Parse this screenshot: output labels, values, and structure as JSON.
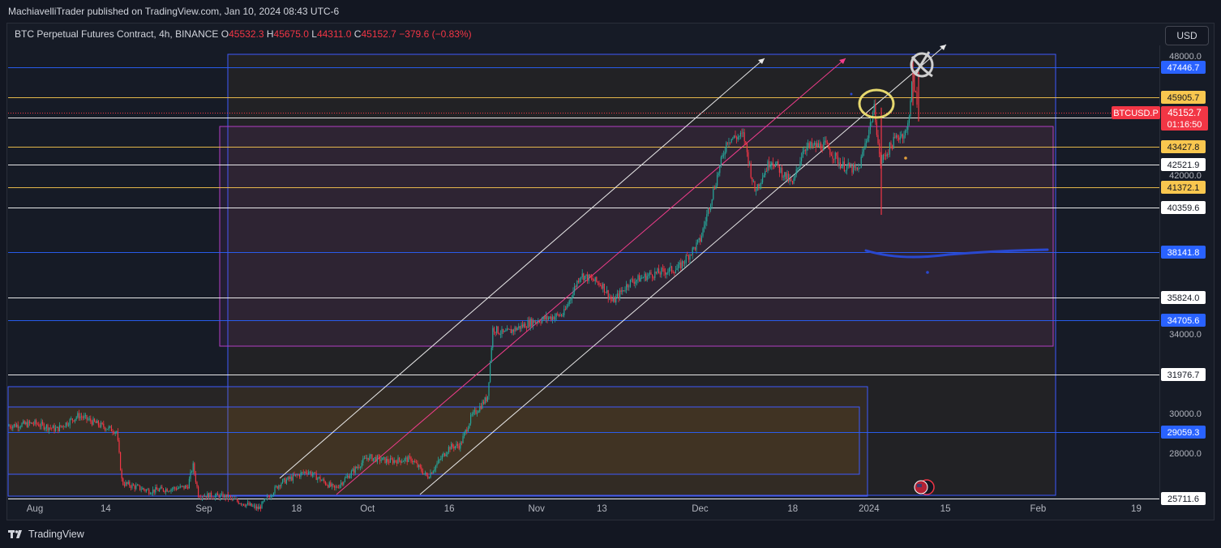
{
  "header": {
    "published_by": "MachiavelliTrader published on TradingView.com, Jan 10, 2024 08:43 UTC-6"
  },
  "legend": {
    "instrument": "BTC Perpetual Futures Contract, 4h, BINANCE",
    "open_label": "O",
    "open": "45532.3",
    "high_label": "H",
    "high": "45675.0",
    "low_label": "L",
    "low": "44311.0",
    "close_label": "C",
    "close": "45152.7",
    "change": "−379.6 (−0.83%)"
  },
  "toolbar": {
    "currency": "USD"
  },
  "footer": {
    "brand": "TradingView"
  },
  "colors": {
    "background": "#131722",
    "up": "#26a69a",
    "down": "#f23645",
    "blue_line": "#2962ff",
    "yellow_line": "#f9c74f",
    "white_line": "#ffffff",
    "channel_pink": "#f23d8c",
    "box_pink": "#b33ec4",
    "box_blue": "#3d5afe",
    "marker_blue": "#2948d0"
  },
  "chart_data": {
    "type": "candlestick",
    "symbol": "BTCUSD.P",
    "last_price": "45152.7",
    "countdown": "01:16:50",
    "y_ticks": [
      48000,
      42000,
      34000,
      30000,
      28000
    ],
    "y_tick_labels": [
      "48000.0",
      "42000.0",
      "34000.0",
      "30000.0",
      "28000.0"
    ],
    "x_ticks": [
      {
        "label": "Aug",
        "date": "2023-08-01"
      },
      {
        "label": "14",
        "date": "2023-08-14"
      },
      {
        "label": "Sep",
        "date": "2023-09-01"
      },
      {
        "label": "18",
        "date": "2023-09-18"
      },
      {
        "label": "Oct",
        "date": "2023-10-01"
      },
      {
        "label": "16",
        "date": "2023-10-16"
      },
      {
        "label": "Nov",
        "date": "2023-11-01"
      },
      {
        "label": "13",
        "date": "2023-11-13"
      },
      {
        "label": "Dec",
        "date": "2023-12-01"
      },
      {
        "label": "18",
        "date": "2023-12-18"
      },
      {
        "label": "2024",
        "date": "2024-01-01"
      },
      {
        "label": "15",
        "date": "2024-01-15"
      },
      {
        "label": "Feb",
        "date": "2024-02-01"
      },
      {
        "label": "19",
        "date": "2024-02-19"
      }
    ],
    "horizontal_levels": [
      {
        "price": 47446.7,
        "label": "47446.7",
        "color": "blue"
      },
      {
        "price": 45905.7,
        "label": "45905.7",
        "color": "yellow"
      },
      {
        "price": 44878.7,
        "label": "44878.7",
        "color": "white"
      },
      {
        "price": 43427.8,
        "label": "43427.8",
        "color": "yellow"
      },
      {
        "price": 42521.9,
        "label": "42521.9",
        "color": "white"
      },
      {
        "price": 41372.1,
        "label": "41372.1",
        "color": "yellow"
      },
      {
        "price": 40359.6,
        "label": "40359.6",
        "color": "white"
      },
      {
        "price": 38141.8,
        "label": "38141.8",
        "color": "blue"
      },
      {
        "price": 35824.0,
        "label": "35824.0",
        "color": "white"
      },
      {
        "price": 34705.6,
        "label": "34705.6",
        "color": "blue"
      },
      {
        "price": 31976.7,
        "label": "31976.7",
        "color": "white"
      },
      {
        "price": 29059.3,
        "label": "29059.3",
        "color": "blue"
      },
      {
        "price": 25711.6,
        "label": "25711.6",
        "color": "white"
      }
    ],
    "price_path": [
      {
        "date": "2023-07-24",
        "price": 29300
      },
      {
        "date": "2023-08-01",
        "price": 29500
      },
      {
        "date": "2023-08-05",
        "price": 29200
      },
      {
        "date": "2023-08-09",
        "price": 29900
      },
      {
        "date": "2023-08-13",
        "price": 29400
      },
      {
        "date": "2023-08-16",
        "price": 29100
      },
      {
        "date": "2023-08-17",
        "price": 26500
      },
      {
        "date": "2023-08-22",
        "price": 26100
      },
      {
        "date": "2023-08-29",
        "price": 26300
      },
      {
        "date": "2023-08-30",
        "price": 27400
      },
      {
        "date": "2023-08-31",
        "price": 25900
      },
      {
        "date": "2023-09-05",
        "price": 25800
      },
      {
        "date": "2023-09-11",
        "price": 25200
      },
      {
        "date": "2023-09-15",
        "price": 26500
      },
      {
        "date": "2023-09-20",
        "price": 27100
      },
      {
        "date": "2023-09-25",
        "price": 26200
      },
      {
        "date": "2023-10-01",
        "price": 27800
      },
      {
        "date": "2023-10-05",
        "price": 27600
      },
      {
        "date": "2023-10-09",
        "price": 27700
      },
      {
        "date": "2023-10-12",
        "price": 26800
      },
      {
        "date": "2023-10-16",
        "price": 28300
      },
      {
        "date": "2023-10-18",
        "price": 28400
      },
      {
        "date": "2023-10-20",
        "price": 29800
      },
      {
        "date": "2023-10-23",
        "price": 30800
      },
      {
        "date": "2023-10-24",
        "price": 34300
      },
      {
        "date": "2023-10-26",
        "price": 34000
      },
      {
        "date": "2023-10-31",
        "price": 34600
      },
      {
        "date": "2023-11-06",
        "price": 35000
      },
      {
        "date": "2023-11-09",
        "price": 37000
      },
      {
        "date": "2023-11-13",
        "price": 36500
      },
      {
        "date": "2023-11-15",
        "price": 35600
      },
      {
        "date": "2023-11-18",
        "price": 36600
      },
      {
        "date": "2023-11-22",
        "price": 37000
      },
      {
        "date": "2023-11-27",
        "price": 37300
      },
      {
        "date": "2023-12-01",
        "price": 38700
      },
      {
        "date": "2023-12-04",
        "price": 41800
      },
      {
        "date": "2023-12-06",
        "price": 43800
      },
      {
        "date": "2023-12-09",
        "price": 44000
      },
      {
        "date": "2023-12-11",
        "price": 41200
      },
      {
        "date": "2023-12-14",
        "price": 42800
      },
      {
        "date": "2023-12-18",
        "price": 41500
      },
      {
        "date": "2023-12-20",
        "price": 43400
      },
      {
        "date": "2023-12-24",
        "price": 43500
      },
      {
        "date": "2023-12-27",
        "price": 42500
      },
      {
        "date": "2023-12-30",
        "price": 42200
      },
      {
        "date": "2024-01-02",
        "price": 45400
      },
      {
        "date": "2024-01-03",
        "price": 42600
      },
      {
        "date": "2024-01-06",
        "price": 43900
      },
      {
        "date": "2024-01-08",
        "price": 44200
      },
      {
        "date": "2024-01-09",
        "price": 47000
      },
      {
        "date": "2024-01-10",
        "price": 45152.7
      }
    ]
  }
}
